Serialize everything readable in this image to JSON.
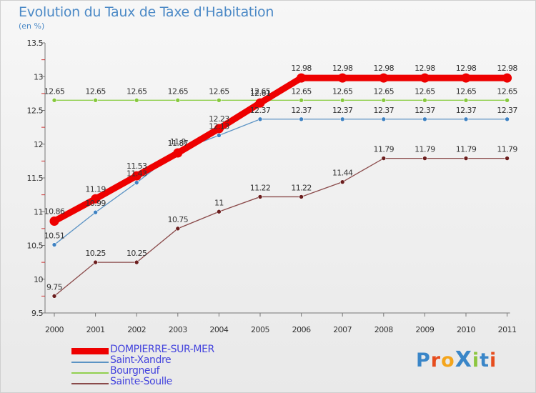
{
  "title": "Evolution du Taux de Taxe d'Habitation",
  "unit": "(en %)",
  "logo": {
    "text": "ProXiti",
    "letters": [
      "P",
      "r",
      "o",
      "X",
      "i",
      "t",
      "i"
    ],
    "colors": [
      "#3a86c8",
      "#e64d1e",
      "#f4a51c",
      "#3a86c8",
      "#8cc63f",
      "#3a86c8",
      "#e64d1e"
    ]
  },
  "chart_data": {
    "type": "line",
    "x": [
      "2000",
      "2001",
      "2002",
      "2003",
      "2004",
      "2005",
      "2006",
      "2007",
      "2008",
      "2009",
      "2010",
      "2011"
    ],
    "ylim": [
      9.5,
      13.5
    ],
    "yticks": [
      "9.5",
      "10",
      "10.5",
      "11",
      "11.5",
      "12",
      "12.5",
      "13",
      "13.5"
    ],
    "grid": false,
    "legend": "bottom",
    "series": [
      {
        "name": "DOMPIERRE-SUR-MER",
        "color": "#ee0000",
        "thick": true,
        "values": [
          10.86,
          11.19,
          11.53,
          11.87,
          12.23,
          12.61,
          12.98,
          12.98,
          12.98,
          12.98,
          12.98,
          12.98
        ],
        "labels": [
          "10.86",
          "11.19",
          "11.53",
          "11.87",
          "12.23",
          "12.61",
          "12.98",
          "12.98",
          "12.98",
          "12.98",
          "12.98",
          "12.98"
        ]
      },
      {
        "name": "Saint-Xandre",
        "color": "#5b93c4",
        "point": "#3f82c2",
        "values": [
          10.51,
          10.99,
          11.43,
          11.9,
          12.13,
          12.37,
          12.37,
          12.37,
          12.37,
          12.37,
          12.37,
          12.37
        ],
        "labels": [
          "10.51",
          "10.99",
          "11.43",
          "11.9",
          "12.13",
          "12.37",
          "12.37",
          "12.37",
          "12.37",
          "12.37",
          "12.37",
          "12.37"
        ]
      },
      {
        "name": "Bourgneuf",
        "color": "#92d050",
        "point": "#86c83d",
        "values": [
          12.65,
          12.65,
          12.65,
          12.65,
          12.65,
          12.65,
          12.65,
          12.65,
          12.65,
          12.65,
          12.65,
          12.65
        ],
        "labels": [
          "12.65",
          "12.65",
          "12.65",
          "12.65",
          "12.65",
          "12.65",
          "12.65",
          "12.65",
          "12.65",
          "12.65",
          "12.65",
          "12.65"
        ]
      },
      {
        "name": "Sainte-Soulle",
        "color": "#8a4a4a",
        "point": "#6b1e1e",
        "values": [
          9.75,
          10.25,
          10.25,
          10.75,
          11.0,
          11.22,
          11.22,
          11.44,
          11.79,
          11.79,
          11.79,
          11.79
        ],
        "labels": [
          "9.75",
          "10.25",
          "10.25",
          "10.75",
          "11",
          "11.22",
          "11.22",
          "11.44",
          "11.79",
          "11.79",
          "11.79",
          "11.79"
        ]
      }
    ]
  }
}
